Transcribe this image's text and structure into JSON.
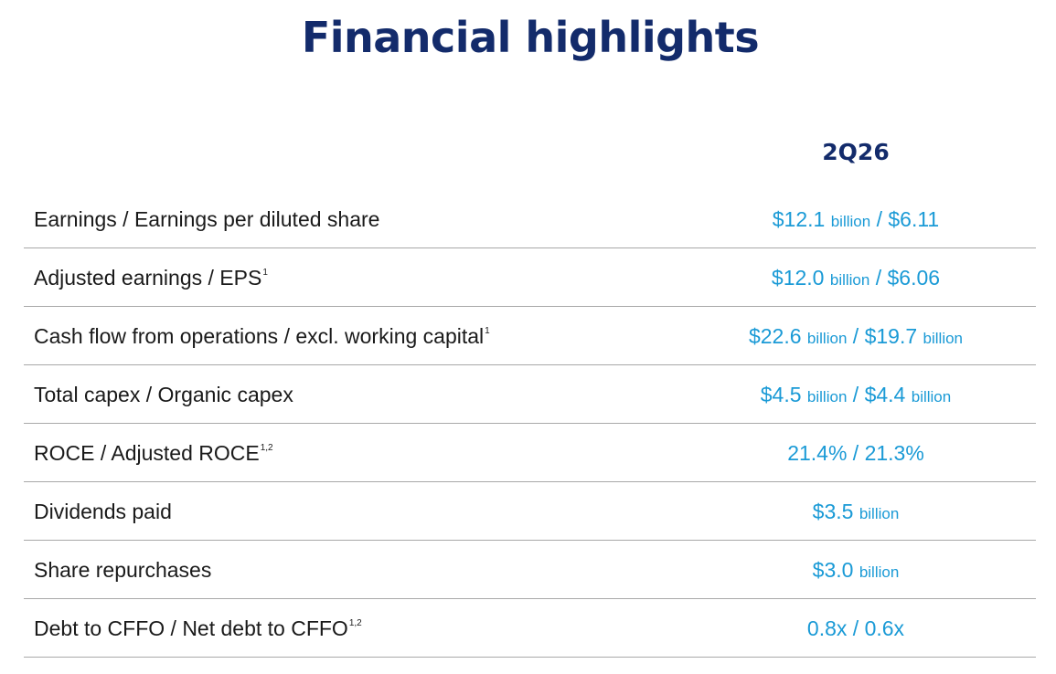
{
  "title": "Financial highlights",
  "column_header": "2Q26",
  "rows": [
    {
      "label": "Earnings / Earnings per diluted share",
      "note": "",
      "v1": "$12.1",
      "u1": "billion",
      "sep": "/",
      "v2": "$6.11",
      "u2": ""
    },
    {
      "label": "Adjusted earnings / EPS",
      "note": "1",
      "v1": "$12.0",
      "u1": "billion",
      "sep": "/",
      "v2": "$6.06",
      "u2": ""
    },
    {
      "label": "Cash flow from operations / excl. working capital",
      "note": "1",
      "v1": "$22.6",
      "u1": "billion",
      "sep": "/",
      "v2": "$19.7",
      "u2": "billion"
    },
    {
      "label": "Total capex / Organic capex",
      "note": "",
      "v1": "$4.5",
      "u1": "billion",
      "sep": "/",
      "v2": "$4.4",
      "u2": "billion"
    },
    {
      "label": "ROCE / Adjusted ROCE",
      "note": "1,2",
      "v1": "21.4%",
      "u1": "",
      "sep": "/",
      "v2": "21.3%",
      "u2": ""
    },
    {
      "label": "Dividends paid",
      "note": "",
      "v1": "$3.5",
      "u1": "billion",
      "sep": "",
      "v2": "",
      "u2": ""
    },
    {
      "label": "Share repurchases",
      "note": "",
      "v1": "$3.0",
      "u1": "billion",
      "sep": "",
      "v2": "",
      "u2": ""
    },
    {
      "label": "Debt to CFFO / Net debt to CFFO",
      "note": "1,2",
      "v1": "0.8x",
      "u1": "",
      "sep": "/",
      "v2": "0.6x",
      "u2": ""
    }
  ],
  "colors": {
    "title": "#132b6b",
    "value": "#1a9ad6",
    "label": "#1a1a1a",
    "rule": "#a8a8a8"
  }
}
